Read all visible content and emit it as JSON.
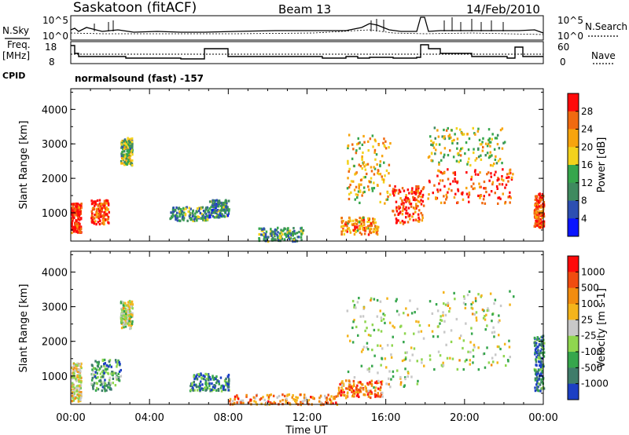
{
  "header": {
    "station": "Saskatoon (fitACF)",
    "beam": "Beam 13",
    "date": "14/Feb/2010"
  },
  "top_panels": {
    "nsky_label": "N.Sky",
    "nsearch_label": "N.Search",
    "noise_ticks_left": [
      "10^5",
      "10^0"
    ],
    "noise_ticks_right": [
      "10^5",
      "10^0"
    ],
    "freq_label_1": "Freq.",
    "freq_label_2": "[MHz]",
    "freq_ticks": [
      "18",
      "8"
    ],
    "nave_label": "Nave",
    "nave_ticks": [
      "60",
      "0"
    ],
    "cpid_label": "CPID",
    "cpid_value": "normalsound (fast) -157"
  },
  "chart_data": [
    {
      "type": "heatmap",
      "title": "",
      "ylabel": "Slant Range [km]",
      "xlabel": "",
      "ylim": [
        180,
        4600
      ],
      "yticks": [
        "1000",
        "2000",
        "3000",
        "4000"
      ],
      "xticks": [
        "00:00",
        "04:00",
        "08:00",
        "12:00",
        "16:00",
        "20:00",
        "00:00"
      ],
      "colorbar_label": "Power [dB]",
      "colorbar_ticks": [
        "4",
        "8",
        "12",
        "16",
        "20",
        "24",
        "28"
      ],
      "colorbar_colors": [
        "#0a14ff",
        "#2d4fb2",
        "#3f8a5f",
        "#36a64c",
        "#f3d21c",
        "#f7a40d",
        "#f06a10",
        "#ff0a0a"
      ],
      "scatter_regions": [
        {
          "t": [
            0.0,
            0.5
          ],
          "r": [
            450,
            1300
          ],
          "level": 0.95
        },
        {
          "t": [
            1.0,
            1.9
          ],
          "r": [
            700,
            1400
          ],
          "level": 0.85
        },
        {
          "t": [
            2.5,
            3.1
          ],
          "r": [
            2400,
            3200
          ],
          "level": 0.45
        },
        {
          "t": [
            5.0,
            7.0
          ],
          "r": [
            800,
            1200
          ],
          "level": 0.35
        },
        {
          "t": [
            7.0,
            8.0
          ],
          "r": [
            900,
            1400
          ],
          "level": 0.3
        },
        {
          "t": [
            9.5,
            11.8
          ],
          "r": [
            200,
            600
          ],
          "level": 0.35
        },
        {
          "t": [
            13.7,
            15.6
          ],
          "r": [
            400,
            900
          ],
          "level": 0.7
        },
        {
          "t": [
            14.0,
            16.2
          ],
          "r": [
            1300,
            3300
          ],
          "level": 0.65
        },
        {
          "t": [
            16.3,
            17.9
          ],
          "r": [
            700,
            1800
          ],
          "level": 0.9
        },
        {
          "t": [
            18.1,
            22.5
          ],
          "r": [
            1300,
            2300
          ],
          "level": 0.85
        },
        {
          "t": [
            18.1,
            22.0
          ],
          "r": [
            2400,
            3500
          ],
          "level": 0.55
        },
        {
          "t": [
            23.5,
            24.0
          ],
          "r": [
            600,
            1600
          ],
          "level": 0.9
        }
      ]
    },
    {
      "type": "heatmap",
      "title": "",
      "ylabel": "Slant Range [km]",
      "xlabel": "Time UT",
      "ylim": [
        180,
        4600
      ],
      "yticks": [
        "1000",
        "2000",
        "3000",
        "4000"
      ],
      "xticks": [
        "00:00",
        "04:00",
        "08:00",
        "12:00",
        "16:00",
        "20:00",
        "00:00"
      ],
      "colorbar_label": "Velocity [m s-1]",
      "colorbar_ticks": [
        "1000",
        "500",
        "100",
        "25",
        "-25",
        "-100",
        "-500",
        "-1000"
      ],
      "colorbar_colors": [
        "#1c3fc4",
        "#3f7c6a",
        "#36a64c",
        "#8fd64f",
        "#c8c8c8",
        "#f4b41b",
        "#f28c0f",
        "#f04c10",
        "#ff0a0a"
      ],
      "scatter_regions": [
        {
          "t": [
            0.0,
            0.5
          ],
          "r": [
            300,
            1400
          ],
          "level": 0.55
        },
        {
          "t": [
            1.0,
            2.5
          ],
          "r": [
            600,
            1500
          ],
          "level": 0.25
        },
        {
          "t": [
            2.5,
            3.1
          ],
          "r": [
            2400,
            3200
          ],
          "level": 0.45
        },
        {
          "t": [
            6.0,
            8.0
          ],
          "r": [
            600,
            1100
          ],
          "level": 0.2
        },
        {
          "t": [
            8.0,
            13.5
          ],
          "r": [
            200,
            500
          ],
          "level": 0.7
        },
        {
          "t": [
            13.5,
            15.8
          ],
          "r": [
            400,
            900
          ],
          "level": 0.75
        },
        {
          "t": [
            14.0,
            17.9
          ],
          "r": [
            700,
            3300
          ],
          "level": 0.45
        },
        {
          "t": [
            18.1,
            22.5
          ],
          "r": [
            1200,
            3500
          ],
          "level": 0.45
        },
        {
          "t": [
            23.5,
            24.0
          ],
          "r": [
            600,
            2200
          ],
          "level": 0.2
        }
      ]
    }
  ]
}
